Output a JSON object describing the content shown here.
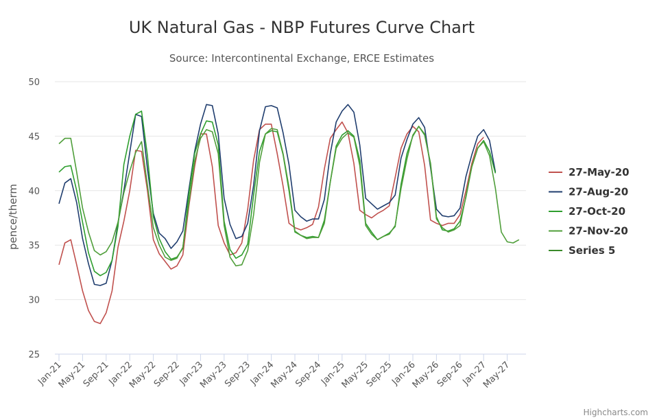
{
  "chart_data": {
    "type": "line",
    "title": "UK Natural Gas - NBP Futures Curve Chart",
    "subtitle": "Source: Intercontinental Exchange, ERCE Estimates",
    "ylabel": "pence/therm",
    "xlabel": "",
    "ylim": [
      25,
      50
    ],
    "yticks": [
      25,
      30,
      35,
      40,
      45,
      50
    ],
    "x_start": "2021-01",
    "xticks": [
      "Jan-21",
      "May-21",
      "Sep-21",
      "Jan-22",
      "May-22",
      "Sep-22",
      "Jan-23",
      "May-23",
      "Sep-23",
      "Jan-24",
      "May-24",
      "Sep-24",
      "Jan-25",
      "May-25",
      "Sep-25",
      "Jan-26",
      "May-26",
      "Sep-26",
      "Jan-27",
      "May-27"
    ],
    "grid": "horizontal",
    "legend_position": "right",
    "credits": "Highcharts.com",
    "series": [
      {
        "name": "27-May-20",
        "color": "#c0504d",
        "start": "2021-01",
        "values": [
          33.2,
          35.2,
          35.5,
          33.2,
          30.8,
          29.0,
          28.0,
          27.8,
          28.8,
          30.8,
          34.8,
          37.2,
          40.0,
          43.7,
          43.6,
          40.0,
          35.5,
          34.2,
          33.5,
          32.8,
          33.1,
          34.1,
          38.5,
          42.2,
          45.2,
          45.2,
          42.2,
          36.8,
          35.2,
          34.1,
          34.3,
          35.2,
          38.3,
          42.8,
          45.6,
          46.1,
          46.1,
          43.4,
          40.4,
          37.0,
          36.6,
          36.4,
          36.6,
          36.9,
          38.5,
          42.0,
          44.8,
          45.6,
          46.3,
          45.3,
          42.5,
          38.2,
          37.8,
          37.5,
          37.9,
          38.2,
          38.6,
          41.2,
          43.9,
          45.2,
          45.9,
          45.4,
          42.3,
          37.3,
          37.0,
          36.8,
          37.0,
          37.0,
          37.8,
          40.0,
          42.5,
          44.3,
          44.9
        ]
      },
      {
        "name": "27-Aug-20",
        "color": "#1f3d6e",
        "start": "2021-01",
        "values": [
          38.8,
          40.7,
          41.1,
          38.9,
          35.6,
          33.3,
          31.4,
          31.3,
          31.5,
          33.6,
          37.0,
          40.0,
          43.5,
          47.0,
          46.8,
          42.0,
          37.9,
          36.1,
          35.6,
          34.7,
          35.3,
          36.3,
          40.0,
          43.6,
          46.1,
          47.9,
          47.8,
          45.2,
          39.3,
          36.9,
          35.6,
          35.8,
          37.0,
          40.5,
          45.5,
          47.7,
          47.8,
          47.6,
          45.3,
          42.4,
          38.2,
          37.6,
          37.2,
          37.4,
          37.4,
          39.2,
          43.4,
          46.3,
          47.3,
          47.9,
          47.2,
          44.2,
          39.3,
          38.8,
          38.3,
          38.6,
          38.9,
          39.6,
          43.0,
          44.7,
          46.1,
          46.7,
          45.8,
          42.1,
          38.3,
          37.7,
          37.6,
          37.7,
          38.4,
          41.3,
          43.3,
          45.0,
          45.6,
          44.6,
          41.7
        ]
      },
      {
        "name": "27-Oct-20",
        "color": "#2e9e2e",
        "start": "2021-01",
        "values": [
          41.7,
          42.2,
          42.3,
          40.0,
          37.1,
          34.3,
          32.6,
          32.2,
          32.5,
          33.6,
          36.7,
          42.4,
          45.0,
          47.0,
          47.3,
          43.2,
          37.6,
          35.6,
          34.4,
          33.7,
          33.9,
          34.7,
          39.6,
          43.4,
          45.2,
          46.4,
          46.3,
          44.2,
          37.2,
          34.6,
          33.8,
          34.1,
          35.1,
          39.6,
          43.6,
          45.2,
          45.5,
          45.4,
          43.3,
          40.0,
          36.2,
          35.9,
          35.7,
          35.8,
          35.7,
          37.3,
          40.8,
          44.1,
          45.1,
          45.5,
          45.0,
          42.8,
          37.0,
          36.2,
          35.5,
          35.8,
          36.1,
          36.7,
          40.6,
          43.4,
          45.0,
          45.9,
          45.1,
          42.5,
          37.6,
          36.4,
          36.3,
          36.5,
          37.2,
          39.4,
          42.2,
          43.9,
          44.6,
          43.6,
          41.6
        ]
      },
      {
        "name": "27-Nov-20",
        "color": "#4f9e3a",
        "start": "2021-01",
        "values": [
          44.3,
          44.8,
          44.8,
          41.7,
          38.4,
          36.2,
          34.5,
          34.1,
          34.4,
          35.3,
          37.1,
          39.8,
          41.8,
          43.5,
          44.5,
          40.5,
          36.6,
          35.0,
          33.9,
          33.6,
          33.8,
          34.8,
          38.8,
          42.7,
          44.8,
          45.6,
          45.4,
          43.4,
          36.8,
          33.9,
          33.1,
          33.2,
          34.5,
          37.8,
          42.6,
          45.2,
          45.7,
          45.6,
          43.4,
          40.3,
          36.3,
          35.9,
          35.6,
          35.7,
          35.7,
          37.0,
          40.8,
          43.9,
          44.8,
          45.3,
          44.9,
          42.3,
          36.8,
          36.0,
          35.5,
          35.8,
          36.0,
          36.8,
          40.2,
          42.9,
          45.1,
          45.9,
          45.2,
          42.4,
          37.4,
          36.6,
          36.2,
          36.4,
          36.8,
          39.5,
          42.2,
          43.9,
          44.5,
          43.2,
          40.2,
          36.2,
          35.3,
          35.2,
          35.5
        ]
      },
      {
        "name": "Series 5",
        "color": "#3a8a2a",
        "start": "2021-01",
        "values": [
          null,
          null,
          null,
          null,
          null,
          null,
          null,
          null,
          null,
          null,
          null,
          null,
          null,
          null,
          null,
          null,
          null,
          null,
          null,
          null,
          null,
          null,
          null,
          null,
          null,
          null,
          null,
          null,
          null,
          null,
          null,
          null,
          null,
          null,
          null,
          null,
          null,
          null,
          null,
          null,
          null,
          null,
          null,
          null,
          null,
          null,
          null,
          null,
          null,
          null,
          null,
          null,
          null,
          null,
          null,
          null,
          null,
          null,
          null,
          null,
          null,
          null,
          null,
          null,
          null,
          null,
          null,
          null,
          null,
          null,
          null,
          null,
          null,
          null,
          null,
          null,
          null,
          null,
          null
        ]
      }
    ]
  }
}
